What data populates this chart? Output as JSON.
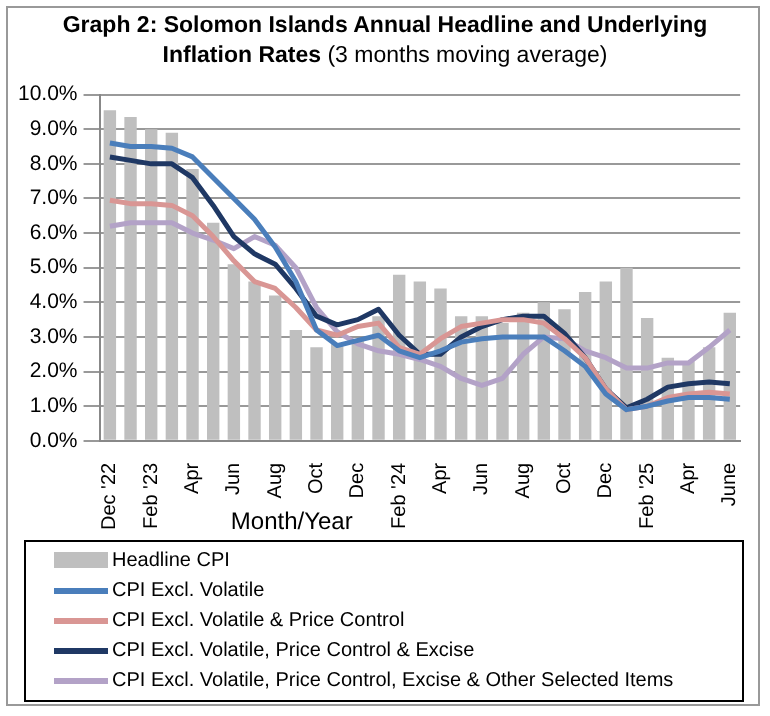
{
  "chart_data": {
    "type": "bar",
    "title": "Graph 2:  Solomon Islands Annual Headline and Underlying Inflation Rates",
    "subtitle": "(3 months moving average)",
    "xlabel": "Month/Year",
    "categories": [
      "Dec '22",
      null,
      "Feb '23",
      null,
      "Apr",
      null,
      "Jun",
      null,
      "Aug",
      null,
      "Oct",
      null,
      "Dec",
      null,
      "Feb '24",
      null,
      "Apr",
      null,
      "Jun",
      null,
      "Aug",
      null,
      "Oct",
      null,
      "Dec",
      null,
      "Feb '25",
      null,
      "Apr",
      null,
      "June"
    ],
    "series": [
      {
        "name": "Headline CPI",
        "color": "#bfbfbf",
        "values": [
          9.55,
          9.35,
          9.0,
          8.9,
          7.85,
          6.3,
          5.1,
          4.6,
          4.2,
          3.2,
          2.7,
          2.8,
          2.9,
          3.6,
          4.8,
          4.6,
          4.4,
          3.6,
          3.6,
          3.4,
          3.7,
          4.0,
          3.8,
          4.3,
          4.6,
          5.0,
          3.55,
          2.4,
          2.3,
          2.7,
          3.7
        ]
      },
      {
        "name": "CPI Excl. Volatile",
        "type": "line",
        "color": "#4a7ebb",
        "values": [
          8.6,
          8.5,
          8.5,
          8.45,
          8.2,
          7.6,
          7.0,
          6.4,
          5.6,
          4.6,
          3.2,
          2.75,
          2.9,
          3.05,
          2.6,
          2.4,
          2.6,
          2.85,
          2.95,
          3.0,
          3.0,
          3.0,
          2.6,
          2.15,
          1.35,
          0.9,
          1.0,
          1.15,
          1.25,
          1.25,
          1.2
        ]
      },
      {
        "name": "CPI Excl. Volatile & Price Control",
        "type": "line",
        "color": "#d99694",
        "values": [
          6.95,
          6.85,
          6.85,
          6.8,
          6.5,
          5.9,
          5.2,
          4.6,
          4.4,
          3.85,
          3.2,
          3.05,
          3.3,
          3.4,
          2.7,
          2.5,
          2.95,
          3.3,
          3.4,
          3.5,
          3.5,
          3.4,
          2.95,
          2.4,
          1.5,
          0.9,
          1.0,
          1.25,
          1.35,
          1.4,
          1.35
        ]
      },
      {
        "name": "CPI Excl. Volatile, Price Control & Excise",
        "type": "line",
        "color": "#1f3864",
        "values": [
          8.2,
          8.1,
          8.0,
          8.0,
          7.6,
          6.8,
          5.9,
          5.4,
          5.1,
          4.4,
          3.6,
          3.35,
          3.5,
          3.8,
          3.05,
          2.5,
          2.5,
          3.0,
          3.3,
          3.5,
          3.6,
          3.6,
          3.1,
          2.4,
          1.5,
          0.95,
          1.2,
          1.55,
          1.65,
          1.7,
          1.65
        ]
      },
      {
        "name": "CPI Excl. Volatile, Price Control, Excise & Other Selected Items",
        "type": "line",
        "color": "#b3a2c7",
        "values": [
          6.2,
          6.3,
          6.3,
          6.3,
          6.0,
          5.8,
          5.55,
          5.9,
          5.65,
          5.0,
          3.85,
          3.15,
          2.8,
          2.6,
          2.5,
          2.35,
          2.15,
          1.8,
          1.6,
          1.8,
          2.5,
          3.0,
          2.95,
          2.6,
          2.4,
          2.1,
          2.1,
          2.25,
          2.25,
          2.7,
          3.2
        ]
      }
    ],
    "ylim": [
      0,
      10
    ],
    "yticks": [
      {
        "value": 0,
        "label": "0.0%"
      },
      {
        "value": 1,
        "label": "1.0%"
      },
      {
        "value": 2,
        "label": "2.0%"
      },
      {
        "value": 3,
        "label": "3.0%"
      },
      {
        "value": 4,
        "label": "4.0%"
      },
      {
        "value": 5,
        "label": "5.0%"
      },
      {
        "value": 6,
        "label": "6.0%"
      },
      {
        "value": 7,
        "label": "7.0%"
      },
      {
        "value": 8,
        "label": "8.0%"
      },
      {
        "value": 9,
        "label": "9.0%"
      },
      {
        "value": 10,
        "label": "10.0%"
      }
    ],
    "grid": "y",
    "legend": "bottom",
    "marker": "none",
    "line_style": "solid"
  }
}
